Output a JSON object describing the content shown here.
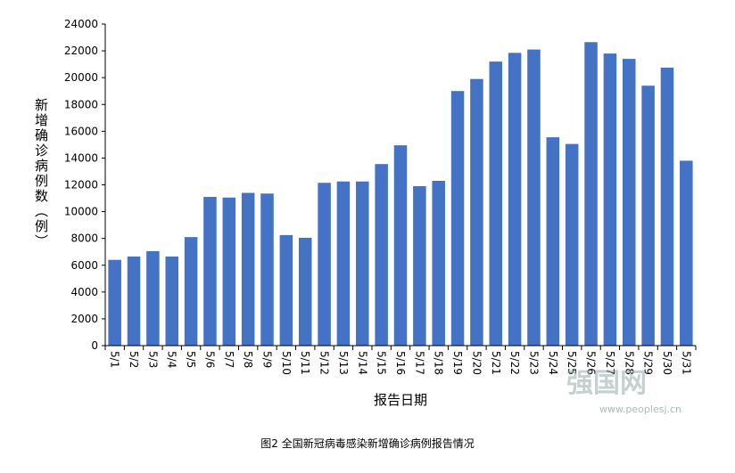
{
  "chart_data": {
    "type": "bar",
    "ylabel": "新增确诊病例数（例）",
    "xlabel": "报告日期",
    "caption": "图2 全国新冠病毒感染新增确诊病例报告情况",
    "watermark": {
      "logo": "强国网",
      "url": "www.peoplesj.cn"
    },
    "categories": [
      "5/1",
      "5/2",
      "5/3",
      "5/4",
      "5/5",
      "5/6",
      "5/7",
      "5/8",
      "5/9",
      "5/10",
      "5/11",
      "5/12",
      "5/13",
      "5/14",
      "5/15",
      "5/16",
      "5/17",
      "5/18",
      "5/19",
      "5/20",
      "5/21",
      "5/22",
      "5/23",
      "5/24",
      "5/25",
      "5/26",
      "5/27",
      "5/28",
      "5/29",
      "5/30",
      "5/31"
    ],
    "values": [
      6400,
      6650,
      7050,
      6650,
      8100,
      11100,
      11050,
      11400,
      11350,
      8250,
      8050,
      12150,
      12250,
      12250,
      13550,
      14950,
      11900,
      12300,
      19000,
      19900,
      21200,
      21850,
      22100,
      15550,
      15050,
      22650,
      21800,
      21400,
      19400,
      20750,
      13800
    ],
    "color": "#4472c4",
    "ylim": [
      0,
      24000
    ],
    "yticks": [
      0,
      2000,
      4000,
      6000,
      8000,
      10000,
      12000,
      14000,
      16000,
      18000,
      20000,
      22000,
      24000
    ],
    "grid": false
  }
}
